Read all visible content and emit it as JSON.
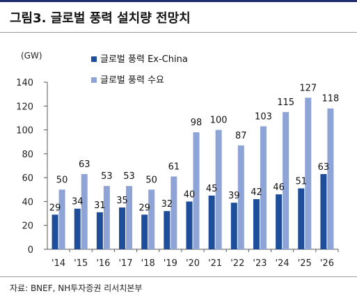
{
  "header": {
    "title": "그림3. 글로벌 풍력 설치량 전망치"
  },
  "source": "자료: BNEF, NH투자증권 리서치본부",
  "chart_data": {
    "type": "bar",
    "unit_label": "(GW)",
    "categories": [
      "'14",
      "'15",
      "'16",
      "'17",
      "'18",
      "'19",
      "'20",
      "'21",
      "'22",
      "'23",
      "'24",
      "'25",
      "'26"
    ],
    "series": [
      {
        "name": "글로벌 풍력 Ex-China",
        "color": "#1e4e9a",
        "values": [
          29,
          34,
          31,
          35,
          29,
          32,
          40,
          45,
          39,
          42,
          46,
          51,
          63
        ]
      },
      {
        "name": "글로벌 풍력 수요",
        "color": "#8ea3d6",
        "values": [
          50,
          63,
          53,
          53,
          50,
          61,
          98,
          100,
          87,
          103,
          115,
          127,
          118
        ]
      }
    ],
    "ylim": [
      0,
      140
    ],
    "yticks": [
      0,
      20,
      40,
      60,
      80,
      100,
      120,
      140
    ],
    "legend_position": "top-left",
    "grid": false
  }
}
